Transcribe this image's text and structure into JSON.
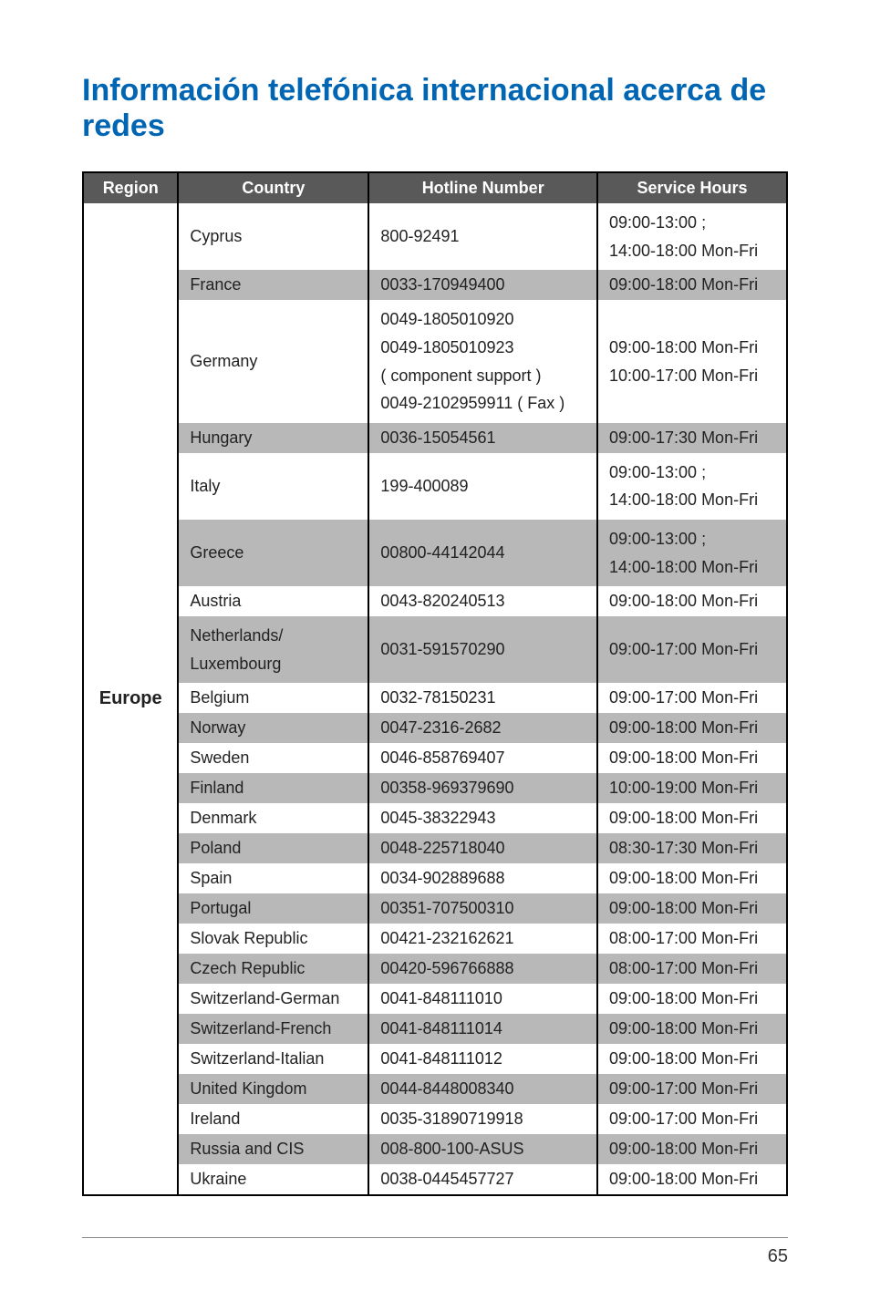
{
  "title": "Información telefónica internacional acerca de redes",
  "columns": [
    "Region",
    "Country",
    "Hotline Number",
    "Service Hours"
  ],
  "region": "Europe",
  "page_number": "65",
  "colors": {
    "title": "#0066b3",
    "header_bg": "#595959",
    "header_fg": "#ffffff",
    "row_light": "#ffffff",
    "row_dark": "#b8b8b8",
    "border": "#000000"
  },
  "rows": [
    {
      "shade": "light",
      "country": "Cyprus",
      "hotline": "800-92491",
      "hours": "09:00-13:00 ;\n14:00-18:00 Mon-Fri"
    },
    {
      "shade": "dark",
      "country": "France",
      "hotline": "0033-170949400",
      "hours": "09:00-18:00 Mon-Fri"
    },
    {
      "shade": "light",
      "country": "Germany",
      "hotline": "0049-1805010920\n0049-1805010923\n( component support )\n0049-2102959911 ( Fax )",
      "hours": "09:00-18:00 Mon-Fri\n10:00-17:00 Mon-Fri"
    },
    {
      "shade": "dark",
      "country": "Hungary",
      "hotline": "0036-15054561",
      "hours": "09:00-17:30 Mon-Fri"
    },
    {
      "shade": "light",
      "country": "Italy",
      "hotline": "199-400089",
      "hours": "09:00-13:00 ;\n14:00-18:00 Mon-Fri"
    },
    {
      "shade": "dark",
      "country": "Greece",
      "hotline": "00800-44142044",
      "hours": "09:00-13:00 ;\n14:00-18:00 Mon-Fri"
    },
    {
      "shade": "light",
      "country": "Austria",
      "hotline": "0043-820240513",
      "hours": "09:00-18:00 Mon-Fri"
    },
    {
      "shade": "dark",
      "country": "Netherlands/\nLuxembourg",
      "hotline": "0031-591570290",
      "hours": "09:00-17:00 Mon-Fri"
    },
    {
      "shade": "light",
      "country": "Belgium",
      "hotline": "0032-78150231",
      "hours": "09:00-17:00 Mon-Fri"
    },
    {
      "shade": "dark",
      "country": "Norway",
      "hotline": "0047-2316-2682",
      "hours": "09:00-18:00 Mon-Fri"
    },
    {
      "shade": "light",
      "country": "Sweden",
      "hotline": "0046-858769407",
      "hours": "09:00-18:00 Mon-Fri"
    },
    {
      "shade": "dark",
      "country": "Finland",
      "hotline": "00358-969379690",
      "hours": "10:00-19:00 Mon-Fri"
    },
    {
      "shade": "light",
      "country": "Denmark",
      "hotline": "0045-38322943",
      "hours": "09:00-18:00 Mon-Fri"
    },
    {
      "shade": "dark",
      "country": "Poland",
      "hotline": "0048-225718040",
      "hours": "08:30-17:30 Mon-Fri"
    },
    {
      "shade": "light",
      "country": "Spain",
      "hotline": "0034-902889688",
      "hours": "09:00-18:00 Mon-Fri"
    },
    {
      "shade": "dark",
      "country": "Portugal",
      "hotline": "00351-707500310",
      "hours": "09:00-18:00 Mon-Fri"
    },
    {
      "shade": "light",
      "country": "Slovak Republic",
      "hotline": "00421-232162621",
      "hours": "08:00-17:00 Mon-Fri"
    },
    {
      "shade": "dark",
      "country": "Czech Republic",
      "hotline": "00420-596766888",
      "hours": "08:00-17:00 Mon-Fri"
    },
    {
      "shade": "light",
      "country": "Switzerland-German",
      "hotline": "0041-848111010",
      "hours": "09:00-18:00 Mon-Fri"
    },
    {
      "shade": "dark",
      "country": "Switzerland-French",
      "hotline": "0041-848111014",
      "hours": "09:00-18:00 Mon-Fri"
    },
    {
      "shade": "light",
      "country": "Switzerland-Italian",
      "hotline": "0041-848111012",
      "hours": "09:00-18:00 Mon-Fri"
    },
    {
      "shade": "dark",
      "country": "United Kingdom",
      "hotline": "0044-8448008340",
      "hours": "09:00-17:00 Mon-Fri"
    },
    {
      "shade": "light",
      "country": "Ireland",
      "hotline": "0035-31890719918",
      "hours": "09:00-17:00 Mon-Fri"
    },
    {
      "shade": "dark",
      "country": "Russia and CIS",
      "hotline": "008-800-100-ASUS",
      "hours": "09:00-18:00 Mon-Fri"
    },
    {
      "shade": "light",
      "country": "Ukraine",
      "hotline": "0038-0445457727",
      "hours": "09:00-18:00 Mon-Fri"
    }
  ]
}
